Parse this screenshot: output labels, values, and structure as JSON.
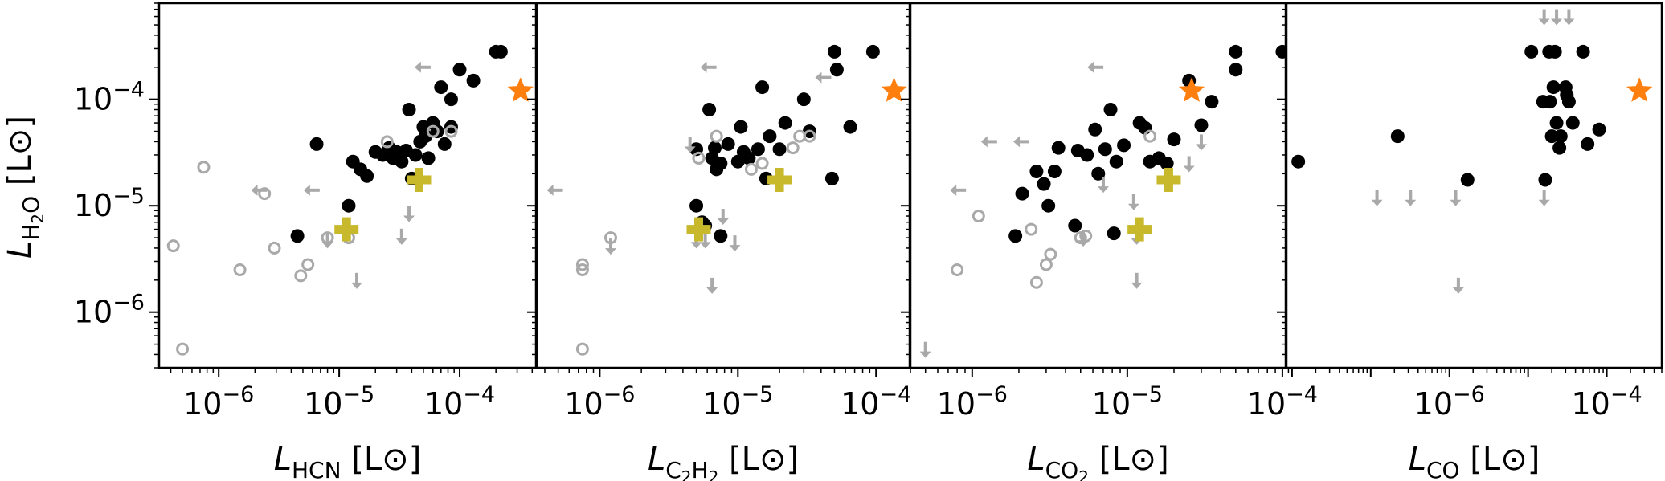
{
  "colors": {
    "detected": "#000000",
    "upper_limit": "#a9a9a9",
    "open": "#a9a9a9",
    "star": "#ff7f0e",
    "plus": "#c8b92c",
    "frame": "#000000"
  },
  "y_axis": {
    "label_main": "L",
    "label_sub": "H",
    "label_sub2": "2",
    "label_sub3": "O",
    "label_unit": " [L",
    "label_sun": "⊙",
    "label_close": "]",
    "scale": "log",
    "range": [
      3e-07,
      0.0008
    ],
    "ticks": [
      {
        "base": "10",
        "exp": "−4",
        "value": 0.0001
      },
      {
        "base": "10",
        "exp": "−5",
        "value": 1e-05
      },
      {
        "base": "10",
        "exp": "−6",
        "value": 1e-06
      }
    ]
  },
  "chart_data": [
    {
      "type": "scatter",
      "panel": "HCN",
      "xscale": "log",
      "xlim": [
        3.2e-07,
        0.00043
      ],
      "ylim": [
        3e-07,
        0.0008
      ],
      "xlabel": {
        "main": "L",
        "sub": "HCN",
        "unit": " [L",
        "sun": "⊙",
        "close": "]"
      },
      "xticks": [
        {
          "base": "10",
          "exp": "−6",
          "value": 1e-06
        },
        {
          "base": "10",
          "exp": "−5",
          "value": 1e-05
        },
        {
          "base": "10",
          "exp": "−4",
          "value": 0.0001
        }
      ],
      "series": [
        {
          "name": "detections",
          "marker": "filled-circle",
          "points": [
            [
              4.5e-06,
              5.2e-06
            ],
            [
              6.5e-06,
              3.8e-05
            ],
            [
              1.2e-05,
              1e-05
            ],
            [
              1.3e-05,
              2.6e-05
            ],
            [
              1.5e-05,
              2.2e-05
            ],
            [
              1.7e-05,
              1.9e-05
            ],
            [
              2e-05,
              3.2e-05
            ],
            [
              2.3e-05,
              3e-05
            ],
            [
              2.6e-05,
              3.5e-05
            ],
            [
              2.8e-05,
              2.8e-05
            ],
            [
              3e-05,
              3.2e-05
            ],
            [
              3.3e-05,
              2.6e-05
            ],
            [
              3.6e-05,
              3.3e-05
            ],
            [
              3.8e-05,
              8e-05
            ],
            [
              4e-05,
              1.8e-05
            ],
            [
              4.3e-05,
              3e-05
            ],
            [
              4.7e-05,
              4e-05
            ],
            [
              5e-05,
              5.5e-05
            ],
            [
              5.2e-05,
              4.5e-05
            ],
            [
              5.5e-05,
              2.8e-05
            ],
            [
              6e-05,
              6e-05
            ],
            [
              6.5e-05,
              5e-05
            ],
            [
              7e-05,
              0.00013
            ],
            [
              7.5e-05,
              3.8e-05
            ],
            [
              8.5e-05,
              5.5e-05
            ],
            [
              8.5e-05,
              0.0001
            ],
            [
              0.0001,
              0.00019
            ],
            [
              0.00013,
              0.00015
            ],
            [
              0.0002,
              0.00028
            ],
            [
              0.00022,
              0.00028
            ]
          ]
        },
        {
          "name": "non-detections",
          "marker": "open-circle",
          "points": [
            [
              4.2e-07,
              4.2e-06
            ],
            [
              5e-07,
              4.5e-07
            ],
            [
              7.5e-07,
              2.3e-05
            ],
            [
              1.5e-06,
              2.5e-06
            ],
            [
              2.4e-06,
              1.3e-05
            ],
            [
              2.9e-06,
              4e-06
            ],
            [
              4.8e-06,
              2.2e-06
            ],
            [
              5.5e-06,
              2.8e-06
            ],
            [
              8e-06,
              5e-06
            ],
            [
              1.2e-05,
              5e-06
            ],
            [
              2.5e-05,
              4e-05
            ],
            [
              6e-05,
              5e-05
            ],
            [
              8.5e-05,
              5e-05
            ]
          ]
        },
        {
          "name": "upper-limits-left",
          "marker": "left-arrow",
          "points": [
            [
              2.2e-06,
              1.4e-05
            ],
            [
              6e-06,
              1.4e-05
            ],
            [
              5e-05,
              0.0002
            ]
          ]
        },
        {
          "name": "upper-limits-down",
          "marker": "down-arrow",
          "points": [
            [
              8e-06,
              4.8e-06
            ],
            [
              1.4e-05,
              2e-06
            ],
            [
              3.3e-05,
              5.2e-06
            ],
            [
              3.8e-05,
              8.5e-06
            ]
          ]
        },
        {
          "name": "reference-star",
          "marker": "star",
          "points": [
            [
              0.00032,
              0.00012
            ]
          ]
        },
        {
          "name": "reference-plus",
          "marker": "plus",
          "points": [
            [
              1.15e-05,
              6e-06
            ],
            [
              4.6e-05,
              1.75e-05
            ]
          ]
        }
      ]
    },
    {
      "type": "scatter",
      "panel": "C2H2",
      "xscale": "log",
      "xlim": [
        3.5e-07,
        0.000175
      ],
      "ylim": [
        3e-07,
        0.0008
      ],
      "xlabel": {
        "main": "L",
        "sub": "C",
        "sub_a": "2",
        "sub_b": "H",
        "sub_c": "2",
        "unit": " [L",
        "sun": "⊙",
        "close": "]"
      },
      "xticks": [
        {
          "base": "10",
          "exp": "−6",
          "value": 1e-06
        },
        {
          "base": "10",
          "exp": "−5",
          "value": 1e-05
        },
        {
          "base": "10",
          "exp": "−4",
          "value": 0.0001
        }
      ],
      "series": [
        {
          "name": "detections",
          "marker": "filled-circle",
          "points": [
            [
              5e-06,
              3.4e-05
            ],
            [
              5e-06,
              1e-05
            ],
            [
              5.5e-06,
              7e-06
            ],
            [
              5.8e-06,
              6.5e-06
            ],
            [
              6.2e-06,
              8e-05
            ],
            [
              6.5e-06,
              2.8e-05
            ],
            [
              6.8e-06,
              3.5e-05
            ],
            [
              7e-06,
              2.2e-05
            ],
            [
              7.5e-06,
              2.5e-05
            ],
            [
              7.5e-06,
              5.2e-06
            ],
            [
              8.5e-06,
              3.8e-05
            ],
            [
              1e-05,
              2.6e-05
            ],
            [
              1.05e-05,
              5.5e-05
            ],
            [
              1.1e-05,
              3.2e-05
            ],
            [
              1.2e-05,
              2.8e-05
            ],
            [
              1.4e-05,
              3.4e-05
            ],
            [
              1.5e-05,
              0.00013
            ],
            [
              1.6e-05,
              1.8e-05
            ],
            [
              1.7e-05,
              4.5e-05
            ],
            [
              2e-05,
              3.4e-05
            ],
            [
              2.2e-05,
              6e-05
            ],
            [
              3e-05,
              0.0001
            ],
            [
              3.3e-05,
              5e-05
            ],
            [
              4.8e-05,
              1.8e-05
            ],
            [
              5e-05,
              0.00028
            ],
            [
              5.2e-05,
              0.00019
            ],
            [
              6.5e-05,
              5.5e-05
            ],
            [
              9.5e-05,
              0.00028
            ]
          ]
        },
        {
          "name": "non-detections",
          "marker": "open-circle",
          "points": [
            [
              7.5e-07,
              2.5e-06
            ],
            [
              7.5e-07,
              2.8e-06
            ],
            [
              7.5e-07,
              4.5e-07
            ],
            [
              1.2e-06,
              5e-06
            ],
            [
              5.2e-06,
              2.8e-05
            ],
            [
              7e-06,
              4.5e-05
            ],
            [
              1.25e-05,
              2.2e-05
            ],
            [
              1.5e-05,
              2.5e-05
            ],
            [
              2.5e-05,
              3.5e-05
            ],
            [
              2.8e-05,
              4.5e-05
            ],
            [
              3.3e-05,
              4.5e-05
            ]
          ]
        },
        {
          "name": "upper-limits-left",
          "marker": "left-arrow",
          "points": [
            [
              4.8e-07,
              1.4e-05
            ],
            [
              6.2e-06,
              0.0002
            ],
            [
              4.2e-05,
              0.00016
            ]
          ]
        },
        {
          "name": "upper-limits-down",
          "marker": "down-arrow",
          "points": [
            [
              1.2e-06,
              4.2e-06
            ],
            [
              4.5e-06,
              3.8e-05
            ],
            [
              5e-06,
              4.8e-06
            ],
            [
              5.8e-06,
              4.8e-06
            ],
            [
              6.5e-06,
              1.8e-06
            ],
            [
              7.8e-06,
              8e-06
            ],
            [
              9.5e-06,
              4.5e-06
            ]
          ]
        },
        {
          "name": "reference-star",
          "marker": "star",
          "points": [
            [
              0.000135,
              0.00012
            ]
          ]
        },
        {
          "name": "reference-plus",
          "marker": "plus",
          "points": [
            [
              5.2e-06,
              6e-06
            ],
            [
              2e-05,
              1.75e-05
            ]
          ]
        }
      ]
    },
    {
      "type": "scatter",
      "panel": "CO2",
      "xscale": "log",
      "xlim": [
        4e-07,
        0.000105
      ],
      "ylim": [
        3e-07,
        0.0008
      ],
      "xlabel": {
        "main": "L",
        "sub": "CO",
        "sub_a": "2",
        "unit": " [L",
        "sun": "⊙",
        "close": "]"
      },
      "xticks": [
        {
          "base": "10",
          "exp": "−6",
          "value": 1e-06
        },
        {
          "base": "10",
          "exp": "−5",
          "value": 1e-05
        },
        {
          "base": "10",
          "exp": "−4",
          "value": 0.0001
        }
      ],
      "series": [
        {
          "name": "detections",
          "marker": "filled-circle",
          "points": [
            [
              1.9e-06,
              5.2e-06
            ],
            [
              2.1e-06,
              1.3e-05
            ],
            [
              2.6e-06,
              2.1e-05
            ],
            [
              2.9e-06,
              1.6e-05
            ],
            [
              3.1e-06,
              1e-05
            ],
            [
              3.4e-06,
              2.1e-05
            ],
            [
              3.6e-06,
              3.5e-05
            ],
            [
              4.6e-06,
              6.5e-06
            ],
            [
              4.8e-06,
              3.3e-05
            ],
            [
              5.5e-06,
              3e-05
            ],
            [
              6.2e-06,
              5.2e-05
            ],
            [
              6.5e-06,
              2e-05
            ],
            [
              7.2e-06,
              3.4e-05
            ],
            [
              7.8e-06,
              8e-05
            ],
            [
              8.2e-06,
              5.5e-06
            ],
            [
              8.5e-06,
              2.6e-05
            ],
            [
              9.5e-06,
              3.7e-05
            ],
            [
              1.2e-05,
              6e-05
            ],
            [
              1.3e-05,
              5.4e-05
            ],
            [
              1.4e-05,
              2.6e-05
            ],
            [
              1.6e-05,
              2.8e-05
            ],
            [
              1.8e-05,
              2.5e-05
            ],
            [
              2e-05,
              4.2e-05
            ],
            [
              2.5e-05,
              0.00015
            ],
            [
              3e-05,
              5.7e-05
            ],
            [
              3.5e-05,
              9.5e-05
            ],
            [
              5e-05,
              0.00028
            ],
            [
              5e-05,
              0.00019
            ],
            [
              0.0001,
              0.00028
            ]
          ]
        },
        {
          "name": "non-detections",
          "marker": "open-circle",
          "points": [
            [
              8e-07,
              2.5e-06
            ],
            [
              1.1e-06,
              8e-06
            ],
            [
              2.4e-06,
              6e-06
            ],
            [
              2.6e-06,
              1.9e-06
            ],
            [
              3e-06,
              2.8e-06
            ],
            [
              3.2e-06,
              3.5e-06
            ],
            [
              5e-06,
              5e-06
            ],
            [
              5.4e-06,
              5.2e-06
            ],
            [
              1.4e-05,
              4.5e-05
            ]
          ]
        },
        {
          "name": "upper-limits-left",
          "marker": "left-arrow",
          "points": [
            [
              8.2e-07,
              1.4e-05
            ],
            [
              1.3e-06,
              4e-05
            ],
            [
              2.1e-06,
              4e-05
            ],
            [
              6.3e-06,
              0.0002
            ]
          ]
        },
        {
          "name": "upper-limits-down",
          "marker": "down-arrow",
          "points": [
            [
              5e-07,
              4.5e-07
            ],
            [
              5.2e-06,
              5e-06
            ],
            [
              7e-06,
              1.6e-05
            ],
            [
              1.1e-05,
              1.1e-05
            ],
            [
              1.15e-05,
              5.2e-06
            ],
            [
              1.15e-05,
              2e-06
            ],
            [
              2.5e-05,
              2.5e-05
            ],
            [
              3e-05,
              4e-05
            ]
          ]
        },
        {
          "name": "reference-star",
          "marker": "star",
          "points": [
            [
              2.6e-05,
              0.00012
            ]
          ]
        },
        {
          "name": "reference-plus",
          "marker": "plus",
          "points": [
            [
              1.2e-05,
              6e-06
            ],
            [
              1.85e-05,
              1.75e-05
            ]
          ]
        }
      ]
    },
    {
      "type": "scatter",
      "panel": "CO",
      "xscale": "log",
      "xlim": [
        8.5e-09,
        0.0005
      ],
      "ylim": [
        3e-07,
        0.0008
      ],
      "xlabel": {
        "main": "L",
        "sub": "CO",
        "unit": " [L",
        "sun": "⊙",
        "close": "]"
      },
      "xticks": [
        {
          "base": "10",
          "exp": "−6",
          "value": 1e-06
        },
        {
          "base": "10",
          "exp": "−4",
          "value": 0.0001
        }
      ],
      "series": [
        {
          "name": "detections",
          "marker": "filled-circle",
          "points": [
            [
              1.2e-08,
              2.6e-05
            ],
            [
              2.2e-07,
              4.5e-05
            ],
            [
              1.7e-06,
              1.75e-05
            ],
            [
              1.1e-05,
              0.00028
            ],
            [
              1.65e-05,
              1.75e-05
            ],
            [
              1.85e-05,
              0.00028
            ],
            [
              2e-05,
              4.5e-05
            ],
            [
              2.1e-05,
              0.00013
            ],
            [
              2.2e-05,
              0.00028
            ],
            [
              2.3e-05,
              6e-05
            ],
            [
              2.5e-05,
              3.5e-05
            ],
            [
              1.55e-05,
              9.5e-05
            ],
            [
              1.9e-05,
              9.5e-05
            ],
            [
              2.6e-05,
              4.5e-05
            ],
            [
              3.1e-05,
              0.00011
            ],
            [
              3.3e-05,
              9.5e-05
            ],
            [
              3.7e-05,
              6e-05
            ],
            [
              5e-05,
              0.00028
            ],
            [
              5.7e-05,
              3.8e-05
            ],
            [
              8e-05,
              5.2e-05
            ],
            [
              3e-05,
              0.00013
            ]
          ]
        },
        {
          "name": "upper-limits-down",
          "marker": "down-arrow",
          "points": [
            [
              1.2e-07,
              1.2e-05
            ],
            [
              3.2e-07,
              1.2e-05
            ],
            [
              1.2e-06,
              1.2e-05
            ],
            [
              1.3e-06,
              1.8e-06
            ],
            [
              1.6e-05,
              1.2e-05
            ],
            [
              1.6e-05,
              0.0006
            ],
            [
              2.3e-05,
              0.0006
            ],
            [
              3.3e-05,
              0.0006
            ]
          ]
        },
        {
          "name": "reference-star",
          "marker": "star",
          "points": [
            [
              0.00026,
              0.00012
            ]
          ]
        }
      ]
    }
  ]
}
